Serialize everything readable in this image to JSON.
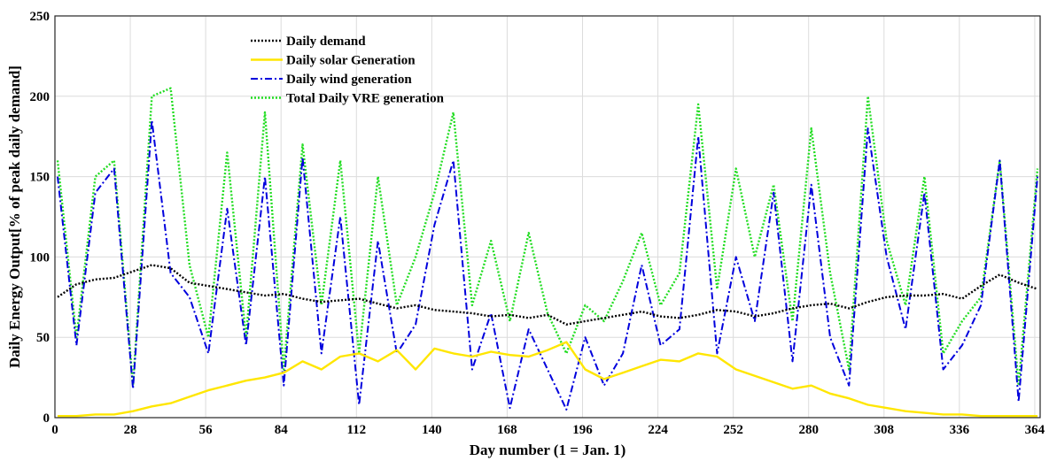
{
  "chart_data": {
    "type": "line",
    "title": "",
    "xlabel": "Day number (1 = Jan. 1)",
    "ylabel": "Daily Energy Output[% of peak daily demand]",
    "xlim": [
      0,
      366
    ],
    "ylim": [
      0,
      250
    ],
    "xticks": [
      0,
      28,
      56,
      84,
      112,
      140,
      168,
      196,
      224,
      252,
      280,
      308,
      336,
      364
    ],
    "yticks": [
      0,
      50,
      100,
      150,
      200,
      250
    ],
    "grid": true,
    "legend_position": "top-center",
    "x": [
      1,
      8,
      15,
      22,
      29,
      36,
      43,
      50,
      57,
      64,
      71,
      78,
      85,
      92,
      99,
      106,
      113,
      120,
      127,
      134,
      141,
      148,
      155,
      162,
      169,
      176,
      183,
      190,
      197,
      204,
      211,
      218,
      225,
      232,
      239,
      246,
      253,
      260,
      267,
      274,
      281,
      288,
      295,
      302,
      309,
      316,
      323,
      330,
      337,
      344,
      351,
      358,
      365
    ],
    "series": [
      {
        "name": "Daily demand",
        "color": "#000000",
        "style": "dotted",
        "values": [
          75,
          83,
          86,
          87,
          91,
          95,
          93,
          84,
          82,
          80,
          78,
          76,
          77,
          74,
          72,
          73,
          74,
          71,
          68,
          70,
          67,
          66,
          65,
          63,
          64,
          62,
          64,
          58,
          60,
          62,
          64,
          66,
          63,
          62,
          64,
          67,
          66,
          63,
          65,
          68,
          70,
          71,
          68,
          72,
          75,
          76,
          76,
          77,
          74,
          82,
          89,
          84,
          80
        ]
      },
      {
        "name": "Daily solar Generation",
        "color": "#ffe600",
        "style": "solid",
        "values": [
          1,
          1,
          2,
          2,
          4,
          7,
          9,
          13,
          17,
          20,
          23,
          25,
          28,
          35,
          30,
          38,
          40,
          35,
          42,
          30,
          43,
          40,
          38,
          41,
          39,
          38,
          42,
          47,
          30,
          24,
          28,
          32,
          36,
          35,
          40,
          38,
          30,
          26,
          22,
          18,
          20,
          15,
          12,
          8,
          6,
          4,
          3,
          2,
          2,
          1,
          1,
          1,
          1
        ]
      },
      {
        "name": "Daily wind generation",
        "color": "#0000dd",
        "style": "dashdot",
        "values": [
          150,
          45,
          140,
          155,
          18,
          185,
          90,
          75,
          40,
          130,
          45,
          150,
          20,
          162,
          40,
          125,
          8,
          110,
          40,
          58,
          120,
          160,
          30,
          65,
          6,
          55,
          30,
          5,
          50,
          20,
          40,
          95,
          45,
          55,
          175,
          40,
          100,
          60,
          140,
          35,
          145,
          50,
          20,
          180,
          100,
          55,
          140,
          30,
          45,
          70,
          160,
          10,
          150
        ]
      },
      {
        "name": "Total Daily VRE generation",
        "color": "#22dd22",
        "style": "dotted",
        "values": [
          160,
          50,
          150,
          160,
          20,
          200,
          205,
          95,
          50,
          165,
          50,
          190,
          30,
          170,
          70,
          160,
          40,
          150,
          70,
          100,
          140,
          190,
          70,
          110,
          60,
          115,
          65,
          40,
          70,
          60,
          85,
          115,
          70,
          90,
          195,
          80,
          155,
          100,
          145,
          60,
          180,
          90,
          30,
          200,
          110,
          70,
          150,
          40,
          60,
          75,
          160,
          20,
          155
        ]
      }
    ]
  }
}
